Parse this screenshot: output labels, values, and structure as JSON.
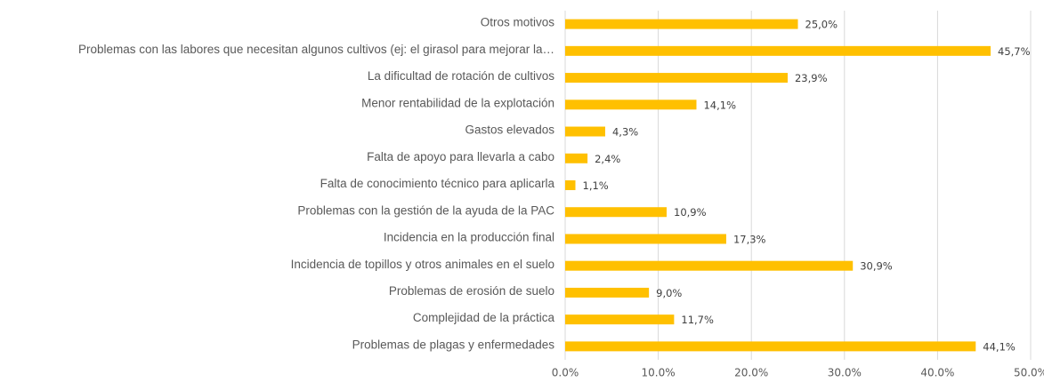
{
  "chart_data": {
    "type": "hbar",
    "categories": [
      "Otros motivos",
      "Problemas con las labores que necesitan algunos cultivos (ej: el girasol para mejorar la…",
      "La dificultad de rotación de cultivos",
      "Menor rentabilidad de la explotación",
      "Gastos elevados",
      "Falta de apoyo para llevarla a cabo",
      "Falta de conocimiento técnico para aplicarla",
      "Problemas con la gestión de la ayuda de la PAC",
      "Incidencia en la producción final",
      "Incidencia de topillos y otros animales en el suelo",
      "Problemas de erosión de suelo",
      "Complejidad de la práctica",
      "Problemas de plagas y enfermedades"
    ],
    "values": [
      25.0,
      45.7,
      23.9,
      14.1,
      4.3,
      2.4,
      1.1,
      10.9,
      17.3,
      30.9,
      9.0,
      11.7,
      44.1
    ],
    "value_labels": [
      "25,0%",
      "45,7%",
      "23,9%",
      "14,1%",
      "4,3%",
      "2,4%",
      "1,1%",
      "10,9%",
      "17,3%",
      "30,9%",
      "9,0%",
      "11,7%",
      "44,1%"
    ],
    "color": "#ffc000",
    "xlim": [
      0,
      50
    ],
    "xticks": [
      {
        "value": 0,
        "label": "0.0%"
      },
      {
        "value": 10,
        "label": "10.0%"
      },
      {
        "value": 20,
        "label": "20.0%"
      },
      {
        "value": 30,
        "label": "30.0%"
      },
      {
        "value": 40,
        "label": "40.0%"
      },
      {
        "value": 50,
        "label": "50.0%"
      }
    ],
    "grid": true
  }
}
